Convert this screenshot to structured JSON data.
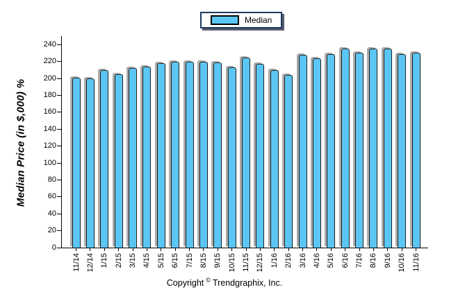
{
  "legend": {
    "label": "Median"
  },
  "colors": {
    "bar_fill": "#5BC6F3",
    "bar_border": "#1E1E1E",
    "bar_shadow": "#ABABAB",
    "legend_border": "#1B3A5E",
    "axis": "#000000"
  },
  "footer": {
    "prefix": "Copyright",
    "symbol": "©",
    "suffix": "Trendgraphix, Inc."
  },
  "chart_data": {
    "type": "bar",
    "title": "",
    "xlabel": "",
    "ylabel": "Median Price (in $,000) %",
    "legend_entries": [
      "Median"
    ],
    "legend_position": "top-center",
    "grid": false,
    "ylim": [
      0,
      250
    ],
    "y_ticks": [
      0,
      20,
      40,
      60,
      80,
      100,
      120,
      140,
      160,
      180,
      200,
      220,
      240
    ],
    "categories": [
      "11/14",
      "12/14",
      "1/15",
      "2/15",
      "3/15",
      "4/15",
      "5/15",
      "6/15",
      "7/15",
      "8/15",
      "9/15",
      "10/15",
      "11/15",
      "12/15",
      "1/16",
      "2/16",
      "3/16",
      "4/16",
      "5/16",
      "6/16",
      "7/16",
      "8/16",
      "9/16",
      "10/16",
      "11/16"
    ],
    "series": [
      {
        "name": "Median",
        "values": [
          201,
          200,
          210,
          205,
          212,
          214,
          218,
          220,
          220,
          220,
          219,
          213,
          225,
          217,
          210,
          204,
          228,
          224,
          229,
          235,
          230,
          235,
          235,
          229,
          230
        ]
      }
    ]
  }
}
